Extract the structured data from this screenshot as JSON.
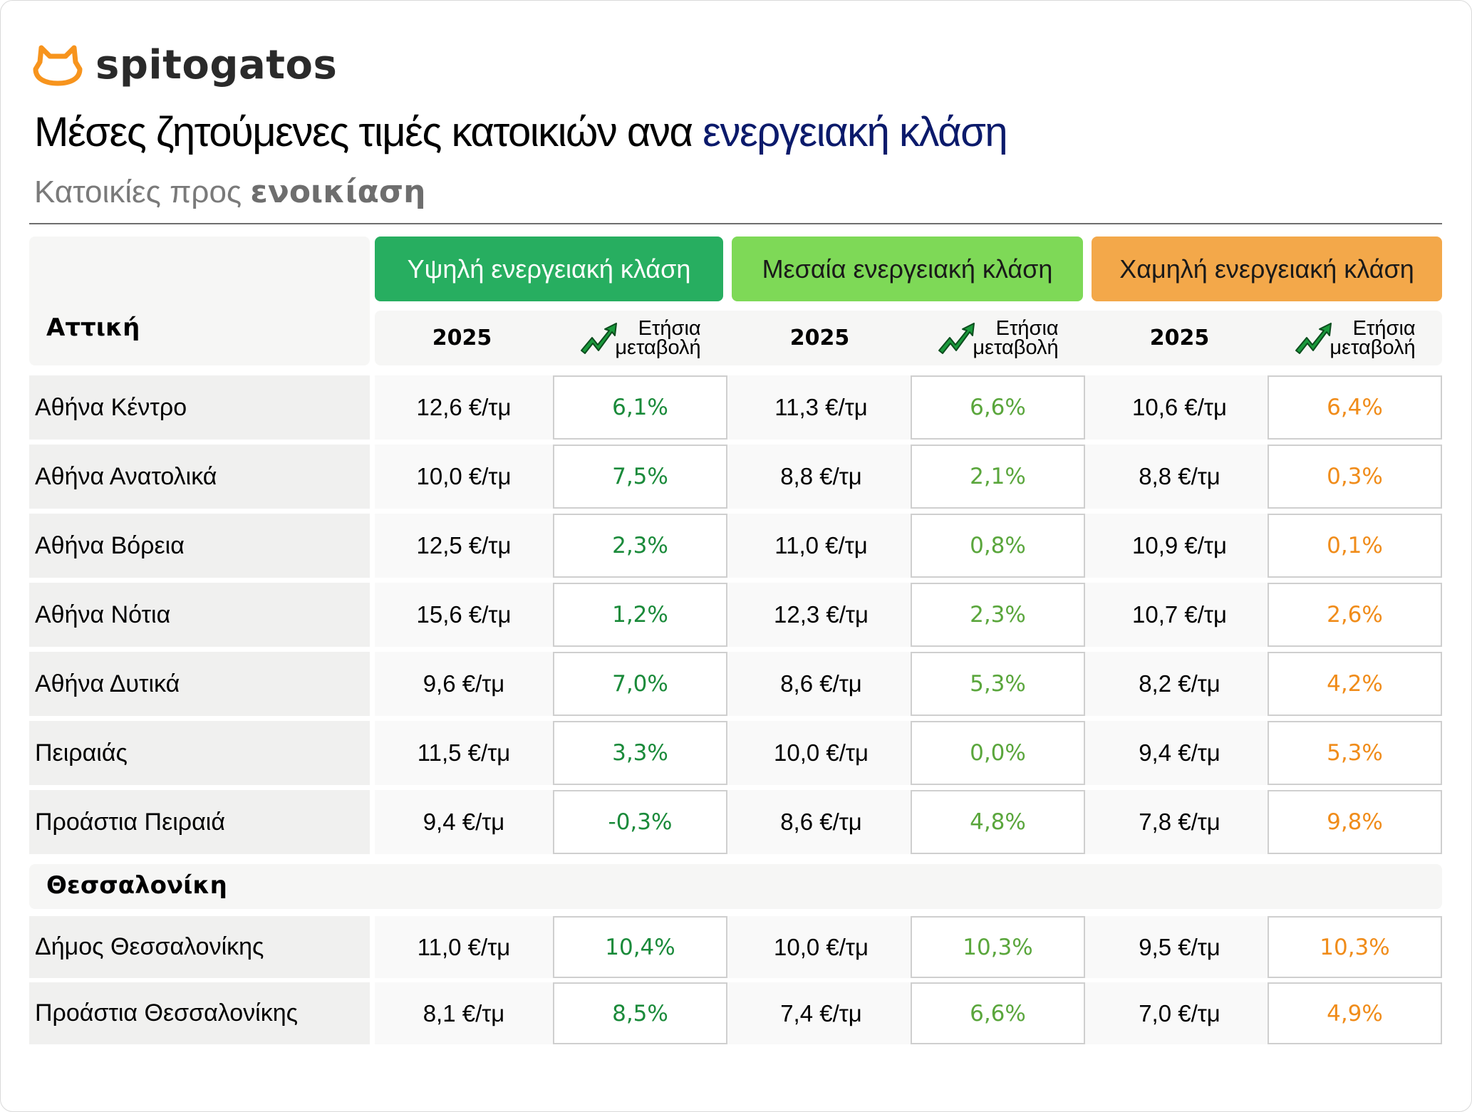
{
  "brand": {
    "name": "spitogatos",
    "logo_icon": "cat-head-icon",
    "logo_color": "#f7941d"
  },
  "header": {
    "title_main": "Μέσες ζητούμενες τιμές κατοικιών ανα ",
    "title_accent": "ενεργειακή κλάση",
    "subtitle_prefix": "Κατοικίες προς ",
    "subtitle_bold": "ενοικίαση"
  },
  "columns": {
    "classes": [
      {
        "label": "Υψηλή ενεργειακή κλάση",
        "color": "#27ae60"
      },
      {
        "label": "Μεσαία ενεργειακή κλάση",
        "color": "#7ed957"
      },
      {
        "label": "Χαμηλή ενεργειακή κλάση",
        "color": "#f3a84a"
      }
    ],
    "year_label": "2025",
    "change_label_line1": "Ετήσια",
    "change_label_line2": "μεταβολή",
    "change_icon": "trend-up-arrow-icon"
  },
  "regions": [
    {
      "name": "Αττική",
      "rows": [
        {
          "area": "Αθήνα Κέντρο",
          "high_price": "12,6 €/τμ",
          "high_change": "6,1%",
          "med_price": "11,3 €/τμ",
          "med_change": "6,6%",
          "low_price": "10,6 €/τμ",
          "low_change": "6,4%"
        },
        {
          "area": "Αθήνα Ανατολικά",
          "high_price": "10,0 €/τμ",
          "high_change": "7,5%",
          "med_price": "8,8 €/τμ",
          "med_change": "2,1%",
          "low_price": "8,8 €/τμ",
          "low_change": "0,3%"
        },
        {
          "area": "Αθήνα Βόρεια",
          "high_price": "12,5 €/τμ",
          "high_change": "2,3%",
          "med_price": "11,0 €/τμ",
          "med_change": "0,8%",
          "low_price": "10,9 €/τμ",
          "low_change": "0,1%"
        },
        {
          "area": "Αθήνα Νότια",
          "high_price": "15,6 €/τμ",
          "high_change": "1,2%",
          "med_price": "12,3 €/τμ",
          "med_change": "2,3%",
          "low_price": "10,7 €/τμ",
          "low_change": "2,6%"
        },
        {
          "area": "Αθήνα Δυτικά",
          "high_price": "9,6 €/τμ",
          "high_change": "7,0%",
          "med_price": "8,6 €/τμ",
          "med_change": "5,3%",
          "low_price": "8,2 €/τμ",
          "low_change": "4,2%"
        },
        {
          "area": "Πειραιάς",
          "high_price": "11,5 €/τμ",
          "high_change": "3,3%",
          "med_price": "10,0 €/τμ",
          "med_change": "0,0%",
          "low_price": "9,4 €/τμ",
          "low_change": "5,3%"
        },
        {
          "area": "Προάστια Πειραιά",
          "high_price": "9,4 €/τμ",
          "high_change": "-0,3%",
          "med_price": "8,6 €/τμ",
          "med_change": "4,8%",
          "low_price": "7,8 €/τμ",
          "low_change": "9,8%"
        }
      ]
    },
    {
      "name": "Θεσσαλονίκη",
      "rows": [
        {
          "area": "Δήμος Θεσσαλονίκης",
          "high_price": "11,0 €/τμ",
          "high_change": "10,4%",
          "med_price": "10,0 €/τμ",
          "med_change": "10,3%",
          "low_price": "9,5 €/τμ",
          "low_change": "10,3%"
        },
        {
          "area": "Προάστια Θεσσαλονίκης",
          "high_price": "8,1 €/τμ",
          "high_change": "8,5%",
          "med_price": "7,4 €/τμ",
          "med_change": "6,6%",
          "low_price": "7,0 €/τμ",
          "low_change": "4,9%"
        }
      ]
    }
  ],
  "colors": {
    "high_change": "#1a8a3a",
    "med_change": "#5aa63c",
    "low_change": "#f08c1a",
    "title_accent": "#0b1a6b"
  }
}
